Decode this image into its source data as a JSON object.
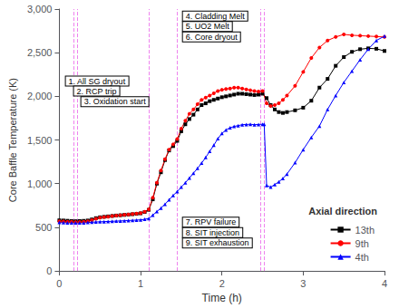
{
  "chart_data": {
    "type": "line",
    "xlabel": "Time (h)",
    "ylabel": "Core Baffle Temperature (K)",
    "xlim": [
      0,
      4
    ],
    "ylim": [
      0,
      3000
    ],
    "xticks": [
      0,
      1,
      2,
      3,
      4
    ],
    "yticks": [
      0,
      500,
      1000,
      1500,
      2000,
      2500,
      3000
    ],
    "grid": false,
    "legend": "lower right",
    "legend_title": "Axial direction",
    "series": [
      {
        "name": "13th",
        "color": "black",
        "marker": "square",
        "x": [
          0.0,
          0.05,
          0.1,
          0.15,
          0.2,
          0.25,
          0.3,
          0.35,
          0.4,
          0.45,
          0.5,
          0.55,
          0.6,
          0.65,
          0.7,
          0.75,
          0.8,
          0.85,
          0.9,
          0.95,
          1.0,
          1.05,
          1.1,
          1.15,
          1.2,
          1.25,
          1.3,
          1.35,
          1.4,
          1.45,
          1.5,
          1.55,
          1.6,
          1.65,
          1.7,
          1.75,
          1.8,
          1.85,
          1.9,
          1.95,
          2.0,
          2.05,
          2.1,
          2.15,
          2.2,
          2.25,
          2.3,
          2.35,
          2.4,
          2.45,
          2.5,
          2.55,
          2.6,
          2.65,
          2.7,
          2.75,
          2.8,
          2.9,
          3.0,
          3.1,
          3.2,
          3.3,
          3.4,
          3.5,
          3.6,
          3.7,
          3.8,
          3.9,
          4.0
        ],
        "values": [
          580,
          578,
          575,
          572,
          570,
          572,
          574,
          578,
          590,
          605,
          615,
          620,
          625,
          630,
          635,
          638,
          642,
          646,
          650,
          655,
          660,
          675,
          700,
          820,
          1000,
          1130,
          1270,
          1380,
          1430,
          1490,
          1600,
          1680,
          1740,
          1790,
          1850,
          1900,
          1920,
          1945,
          1960,
          1975,
          1990,
          2000,
          2010,
          2020,
          2030,
          2030,
          2025,
          2020,
          2015,
          2020,
          2030,
          1980,
          1900,
          1850,
          1820,
          1810,
          1820,
          1840,
          1870,
          1950,
          2100,
          2200,
          2350,
          2450,
          2510,
          2540,
          2550,
          2545,
          2520
        ]
      },
      {
        "name": "9th",
        "color": "red",
        "marker": "circle",
        "x": [
          0.0,
          0.05,
          0.1,
          0.15,
          0.2,
          0.25,
          0.3,
          0.35,
          0.4,
          0.45,
          0.5,
          0.55,
          0.6,
          0.65,
          0.7,
          0.75,
          0.8,
          0.85,
          0.9,
          0.95,
          1.0,
          1.05,
          1.1,
          1.15,
          1.2,
          1.25,
          1.3,
          1.35,
          1.4,
          1.45,
          1.5,
          1.55,
          1.6,
          1.65,
          1.7,
          1.75,
          1.8,
          1.85,
          1.9,
          1.95,
          2.0,
          2.05,
          2.1,
          2.15,
          2.2,
          2.25,
          2.3,
          2.35,
          2.4,
          2.45,
          2.5,
          2.55,
          2.6,
          2.65,
          2.7,
          2.75,
          2.8,
          2.9,
          3.0,
          3.1,
          3.2,
          3.3,
          3.4,
          3.5,
          3.6,
          3.7,
          3.8,
          3.9,
          4.0
        ],
        "values": [
          570,
          568,
          565,
          563,
          560,
          562,
          564,
          570,
          582,
          598,
          610,
          617,
          622,
          628,
          633,
          638,
          643,
          648,
          653,
          658,
          663,
          678,
          703,
          840,
          1010,
          1150,
          1280,
          1390,
          1450,
          1510,
          1630,
          1720,
          1800,
          1850,
          1910,
          1960,
          1985,
          2010,
          2035,
          2060,
          2075,
          2085,
          2090,
          2100,
          2100,
          2090,
          2080,
          2070,
          2060,
          2055,
          2060,
          1920,
          1890,
          1900,
          1920,
          1960,
          2010,
          2120,
          2280,
          2440,
          2560,
          2640,
          2680,
          2710,
          2700,
          2695,
          2690,
          2685,
          2680
        ]
      },
      {
        "name": "4th",
        "color": "blue",
        "marker": "triangle",
        "x": [
          0.0,
          0.05,
          0.1,
          0.15,
          0.2,
          0.25,
          0.3,
          0.35,
          0.4,
          0.45,
          0.5,
          0.55,
          0.6,
          0.65,
          0.7,
          0.75,
          0.8,
          0.85,
          0.9,
          0.95,
          1.0,
          1.05,
          1.1,
          1.15,
          1.2,
          1.25,
          1.3,
          1.35,
          1.4,
          1.45,
          1.5,
          1.55,
          1.6,
          1.65,
          1.7,
          1.75,
          1.8,
          1.85,
          1.9,
          1.95,
          2.0,
          2.05,
          2.1,
          2.15,
          2.2,
          2.25,
          2.3,
          2.35,
          2.4,
          2.45,
          2.5,
          2.52,
          2.55,
          2.6,
          2.65,
          2.7,
          2.75,
          2.8,
          2.9,
          3.0,
          3.1,
          3.2,
          3.3,
          3.4,
          3.5,
          3.6,
          3.7,
          3.8,
          3.9,
          4.0
        ],
        "values": [
          555,
          553,
          552,
          551,
          550,
          551,
          552,
          555,
          558,
          561,
          563,
          565,
          567,
          569,
          571,
          573,
          575,
          578,
          580,
          583,
          585,
          592,
          600,
          640,
          680,
          720,
          765,
          815,
          865,
          910,
          960,
          1010,
          1065,
          1120,
          1175,
          1235,
          1300,
          1370,
          1440,
          1515,
          1575,
          1615,
          1640,
          1655,
          1665,
          1675,
          1678,
          1680,
          1675,
          1678,
          1680,
          1680,
          980,
          960,
          990,
          1020,
          1060,
          1110,
          1240,
          1390,
          1530,
          1660,
          1850,
          2010,
          2160,
          2290,
          2420,
          2540,
          2640,
          2690
        ]
      }
    ],
    "vlines": {
      "x": [
        0.18,
        0.22,
        1.1,
        1.45,
        2.48,
        2.52
      ],
      "color": "#EE82EE",
      "line_style": "dashed"
    },
    "annotations": [
      {
        "text": "4. Cladding Melt",
        "x": 1.52,
        "y": 2920
      },
      {
        "text": "5. UO2 Melt",
        "x": 1.52,
        "y": 2800
      },
      {
        "text": "6. Core dryout",
        "x": 1.52,
        "y": 2680
      },
      {
        "text": "1. All SG dryout",
        "x": 0.08,
        "y": 2175
      },
      {
        "text": "2. RCP trip",
        "x": 0.18,
        "y": 2060
      },
      {
        "text": "3. Oxidation start",
        "x": 0.27,
        "y": 1940
      },
      {
        "text": "7. RPV failure",
        "x": 1.52,
        "y": 560
      },
      {
        "text": "8. SIT injection",
        "x": 1.52,
        "y": 440
      },
      {
        "text": "9. SIT exhaustion",
        "x": 1.52,
        "y": 320
      }
    ]
  }
}
